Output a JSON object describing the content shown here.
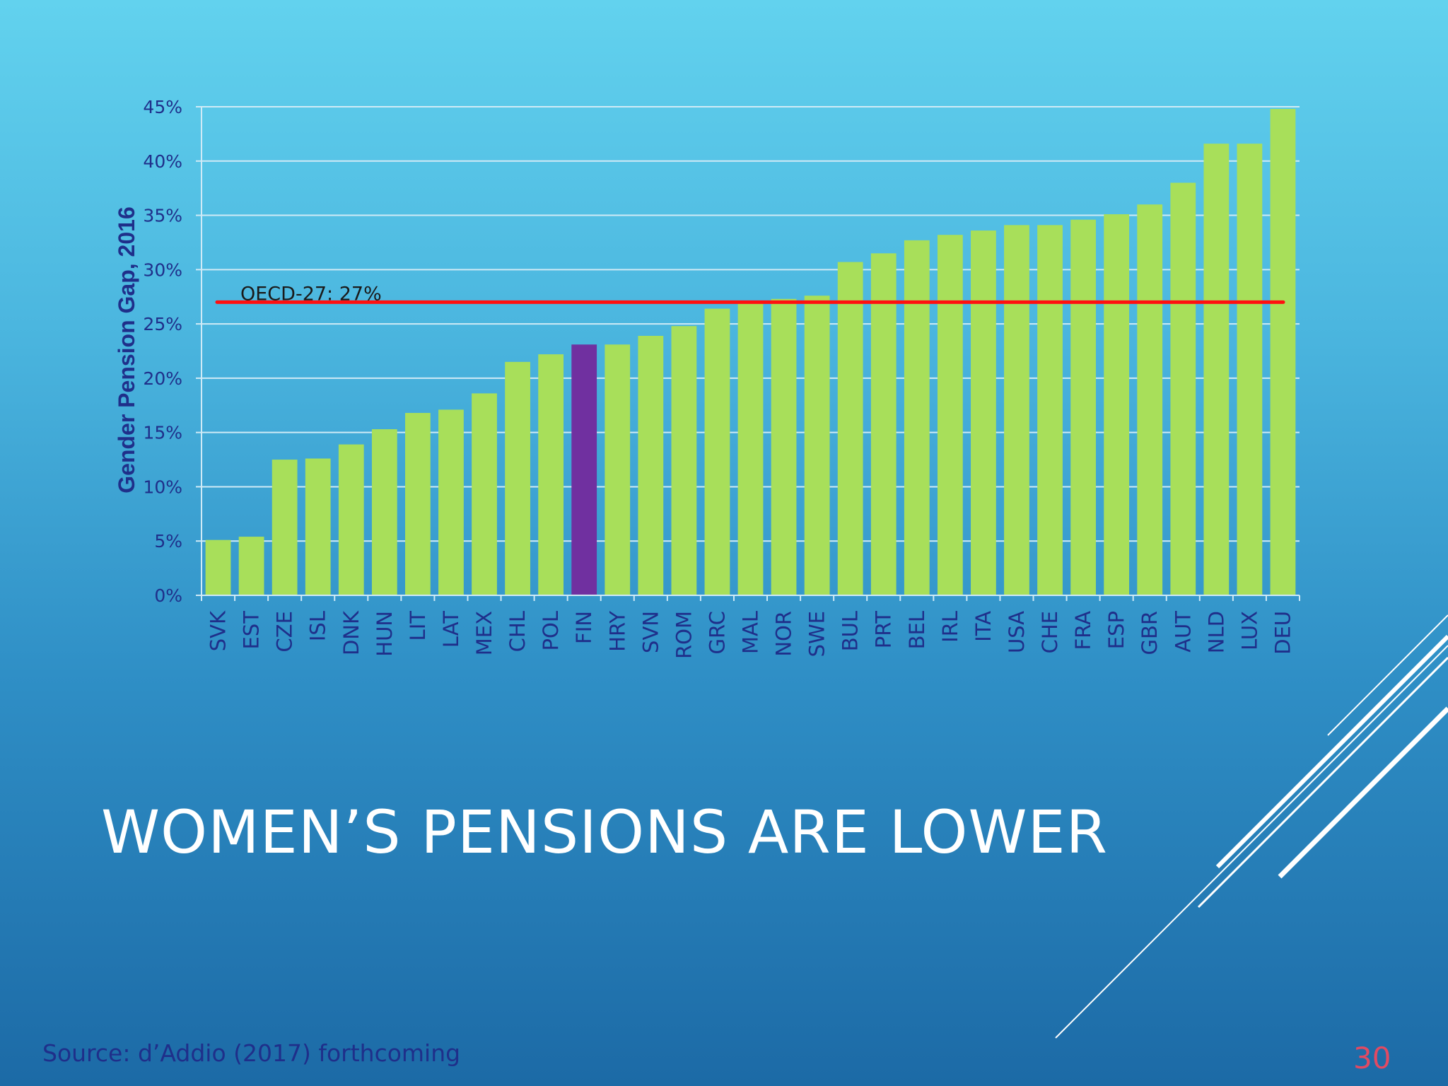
{
  "slide": {
    "title": "WOMEN’S PENSIONS ARE LOWER",
    "source": "Source: d’Addio (2017) forthcoming",
    "page_number": "30"
  },
  "colors": {
    "bar": "#a8df5a",
    "highlight_bar": "#7030a0",
    "reference_line": "#ff1010",
    "grid": "#cfeaf6",
    "axis_text": "#1f2f8a"
  },
  "chart_data": {
    "type": "bar",
    "ylabel": "Gender Pension Gap, 2016",
    "ylim": [
      0,
      45
    ],
    "yticks": [
      0,
      5,
      10,
      15,
      20,
      25,
      30,
      35,
      40,
      45
    ],
    "ytick_labels": [
      "0%",
      "5%",
      "10%",
      "15%",
      "20%",
      "25%",
      "30%",
      "35%",
      "40%",
      "45%"
    ],
    "grid": true,
    "categories": [
      "SVK",
      "EST",
      "CZE",
      "ISL",
      "DNK",
      "HUN",
      "LIT",
      "LAT",
      "MEX",
      "CHL",
      "POL",
      "FIN",
      "HRY",
      "SVN",
      "ROM",
      "GRC",
      "MAL",
      "NOR",
      "SWE",
      "BUL",
      "PRT",
      "BEL",
      "IRL",
      "ITA",
      "USA",
      "CHE",
      "FRA",
      "ESP",
      "GBR",
      "AUT",
      "NLD",
      "LUX",
      "DEU"
    ],
    "values": [
      5.1,
      5.4,
      12.5,
      12.6,
      13.9,
      15.3,
      16.8,
      17.1,
      18.6,
      21.5,
      22.2,
      23.1,
      23.1,
      23.9,
      24.8,
      26.4,
      27.0,
      27.3,
      27.6,
      30.7,
      31.5,
      32.7,
      33.2,
      33.6,
      34.1,
      34.1,
      34.6,
      35.1,
      36.0,
      38.0,
      41.6,
      41.6,
      44.8
    ],
    "highlight": "FIN",
    "reference_line": {
      "value": 27,
      "label": "OECD-27: 27%"
    }
  }
}
